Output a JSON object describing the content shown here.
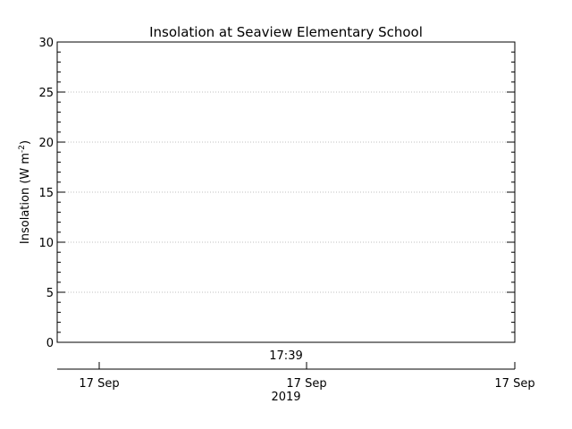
{
  "chart_data": {
    "type": "line",
    "title": "Insolation at Seaview Elementary School",
    "ylabel_main": "Insolation (W m",
    "ylabel_exp": "-2",
    "ylabel_close": ")",
    "ylim": [
      0,
      30
    ],
    "y_ticks": [
      0,
      5,
      10,
      15,
      20,
      25,
      30
    ],
    "y_minor_step": 1,
    "grid": true,
    "time_label": "17:39",
    "x_tick_labels": [
      "17 Sep",
      "17 Sep",
      "17 Sep"
    ],
    "year_label": "2019",
    "series": [],
    "colors": {
      "axis": "#000000",
      "grid": "#bfbfbf",
      "background": "#ffffff"
    }
  }
}
